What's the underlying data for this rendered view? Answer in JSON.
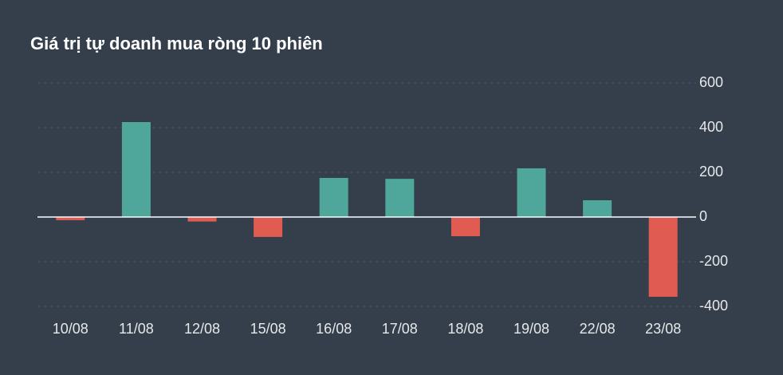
{
  "chart_data": {
    "type": "bar",
    "title": "Giá trị tự doanh mua ròng 10 phiên",
    "categories": [
      "10/08",
      "11/08",
      "12/08",
      "15/08",
      "16/08",
      "17/08",
      "18/08",
      "19/08",
      "22/08",
      "23/08"
    ],
    "values": [
      -14,
      425,
      -20,
      -89,
      175,
      171,
      -86,
      218,
      75,
      -357
    ],
    "positive_color": "#4fa69a",
    "negative_color": "#e05c52",
    "ylim": [
      -400,
      600
    ],
    "yticks": [
      600,
      400,
      200,
      0,
      -200,
      -400
    ],
    "grid": true
  }
}
